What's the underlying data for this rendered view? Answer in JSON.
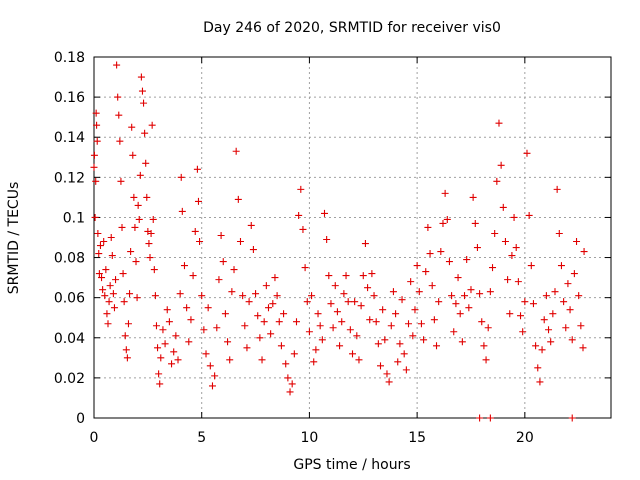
{
  "chart_data": {
    "type": "scatter",
    "title": "Day 246 of 2020, SRMTID for receiver vis0",
    "xlabel": "GPS time / hours",
    "ylabel": "SRMTID / TECUs",
    "xlim": [
      0,
      24
    ],
    "ylim": [
      0,
      0.18
    ],
    "xticks": [
      0,
      5,
      10,
      15,
      20
    ],
    "xtick_labels": [
      "0",
      "5",
      "10",
      "15",
      "20"
    ],
    "yticks": [
      0,
      0.02,
      0.04,
      0.06,
      0.08,
      0.1,
      0.12,
      0.14,
      0.16,
      0.18
    ],
    "ytick_labels": [
      "0",
      "0.02",
      "0.04",
      "0.06",
      "0.08",
      "0.1",
      "0.12",
      "0.14",
      "0.16",
      "0.18"
    ],
    "grid": true,
    "marker": "+",
    "color": "#e00000",
    "series": [
      {
        "name": "vis0",
        "points": [
          [
            0.0,
            0.125
          ],
          [
            0.02,
            0.131
          ],
          [
            0.05,
            0.1
          ],
          [
            0.08,
            0.118
          ],
          [
            0.1,
            0.152
          ],
          [
            0.12,
            0.146
          ],
          [
            0.15,
            0.138
          ],
          [
            0.18,
            0.092
          ],
          [
            0.22,
            0.082
          ],
          [
            0.25,
            0.072
          ],
          [
            0.3,
            0.086
          ],
          [
            0.35,
            0.07
          ],
          [
            0.4,
            0.064
          ],
          [
            0.45,
            0.088
          ],
          [
            0.5,
            0.061
          ],
          [
            0.55,
            0.074
          ],
          [
            0.6,
            0.052
          ],
          [
            0.65,
            0.047
          ],
          [
            0.7,
            0.058
          ],
          [
            0.75,
            0.066
          ],
          [
            0.8,
            0.09
          ],
          [
            0.85,
            0.081
          ],
          [
            0.9,
            0.062
          ],
          [
            0.95,
            0.055
          ],
          [
            1.0,
            0.069
          ],
          [
            1.05,
            0.176
          ],
          [
            1.1,
            0.16
          ],
          [
            1.15,
            0.151
          ],
          [
            1.2,
            0.138
          ],
          [
            1.25,
            0.118
          ],
          [
            1.3,
            0.095
          ],
          [
            1.35,
            0.072
          ],
          [
            1.4,
            0.058
          ],
          [
            1.45,
            0.041
          ],
          [
            1.5,
            0.034
          ],
          [
            1.55,
            0.03
          ],
          [
            1.6,
            0.047
          ],
          [
            1.65,
            0.062
          ],
          [
            1.7,
            0.083
          ],
          [
            1.75,
            0.145
          ],
          [
            1.8,
            0.131
          ],
          [
            1.85,
            0.11
          ],
          [
            1.9,
            0.095
          ],
          [
            1.95,
            0.078
          ],
          [
            2.0,
            0.06
          ],
          [
            2.05,
            0.106
          ],
          [
            2.1,
            0.099
          ],
          [
            2.15,
            0.121
          ],
          [
            2.2,
            0.17
          ],
          [
            2.25,
            0.163
          ],
          [
            2.3,
            0.157
          ],
          [
            2.35,
            0.142
          ],
          [
            2.4,
            0.127
          ],
          [
            2.45,
            0.11
          ],
          [
            2.5,
            0.093
          ],
          [
            2.55,
            0.087
          ],
          [
            2.6,
            0.08
          ],
          [
            2.65,
            0.092
          ],
          [
            2.7,
            0.146
          ],
          [
            2.75,
            0.099
          ],
          [
            2.8,
            0.074
          ],
          [
            2.85,
            0.061
          ],
          [
            2.9,
            0.046
          ],
          [
            2.95,
            0.035
          ],
          [
            3.0,
            0.022
          ],
          [
            3.05,
            0.017
          ],
          [
            3.1,
            0.03
          ],
          [
            3.2,
            0.044
          ],
          [
            3.3,
            0.037
          ],
          [
            3.4,
            0.054
          ],
          [
            3.5,
            0.048
          ],
          [
            3.6,
            0.027
          ],
          [
            3.7,
            0.033
          ],
          [
            3.8,
            0.041
          ],
          [
            3.9,
            0.029
          ],
          [
            4.0,
            0.062
          ],
          [
            4.05,
            0.12
          ],
          [
            4.1,
            0.103
          ],
          [
            4.2,
            0.076
          ],
          [
            4.3,
            0.055
          ],
          [
            4.4,
            0.038
          ],
          [
            4.5,
            0.049
          ],
          [
            4.6,
            0.071
          ],
          [
            4.7,
            0.093
          ],
          [
            4.8,
            0.124
          ],
          [
            4.85,
            0.108
          ],
          [
            4.9,
            0.088
          ],
          [
            5.0,
            0.061
          ],
          [
            5.1,
            0.044
          ],
          [
            5.2,
            0.032
          ],
          [
            5.3,
            0.055
          ],
          [
            5.4,
            0.026
          ],
          [
            5.5,
            0.016
          ],
          [
            5.6,
            0.021
          ],
          [
            5.7,
            0.045
          ],
          [
            5.8,
            0.069
          ],
          [
            5.9,
            0.091
          ],
          [
            6.0,
            0.078
          ],
          [
            6.1,
            0.052
          ],
          [
            6.2,
            0.038
          ],
          [
            6.3,
            0.029
          ],
          [
            6.4,
            0.063
          ],
          [
            6.5,
            0.074
          ],
          [
            6.6,
            0.133
          ],
          [
            6.7,
            0.109
          ],
          [
            6.8,
            0.088
          ],
          [
            6.9,
            0.061
          ],
          [
            7.0,
            0.046
          ],
          [
            7.1,
            0.035
          ],
          [
            7.2,
            0.058
          ],
          [
            7.3,
            0.096
          ],
          [
            7.4,
            0.084
          ],
          [
            7.5,
            0.062
          ],
          [
            7.6,
            0.051
          ],
          [
            7.7,
            0.04
          ],
          [
            7.8,
            0.029
          ],
          [
            7.9,
            0.048
          ],
          [
            8.0,
            0.066
          ],
          [
            8.1,
            0.055
          ],
          [
            8.2,
            0.042
          ],
          [
            8.3,
            0.057
          ],
          [
            8.4,
            0.07
          ],
          [
            8.5,
            0.061
          ],
          [
            8.6,
            0.048
          ],
          [
            8.7,
            0.036
          ],
          [
            8.8,
            0.052
          ],
          [
            8.9,
            0.027
          ],
          [
            9.0,
            0.02
          ],
          [
            9.1,
            0.013
          ],
          [
            9.2,
            0.017
          ],
          [
            9.3,
            0.032
          ],
          [
            9.4,
            0.048
          ],
          [
            9.5,
            0.101
          ],
          [
            9.6,
            0.114
          ],
          [
            9.7,
            0.094
          ],
          [
            9.8,
            0.075
          ],
          [
            9.9,
            0.058
          ],
          [
            10.0,
            0.043
          ],
          [
            10.1,
            0.061
          ],
          [
            10.2,
            0.028
          ],
          [
            10.3,
            0.034
          ],
          [
            10.4,
            0.052
          ],
          [
            10.5,
            0.046
          ],
          [
            10.6,
            0.039
          ],
          [
            10.7,
            0.102
          ],
          [
            10.8,
            0.089
          ],
          [
            10.9,
            0.071
          ],
          [
            11.0,
            0.057
          ],
          [
            11.1,
            0.045
          ],
          [
            11.2,
            0.066
          ],
          [
            11.3,
            0.053
          ],
          [
            11.4,
            0.036
          ],
          [
            11.5,
            0.048
          ],
          [
            11.6,
            0.062
          ],
          [
            11.7,
            0.071
          ],
          [
            11.8,
            0.058
          ],
          [
            11.9,
            0.044
          ],
          [
            12.0,
            0.032
          ],
          [
            12.1,
            0.058
          ],
          [
            12.2,
            0.041
          ],
          [
            12.3,
            0.029
          ],
          [
            12.4,
            0.056
          ],
          [
            12.5,
            0.071
          ],
          [
            12.6,
            0.087
          ],
          [
            12.7,
            0.065
          ],
          [
            12.8,
            0.049
          ],
          [
            12.9,
            0.072
          ],
          [
            13.0,
            0.061
          ],
          [
            13.1,
            0.048
          ],
          [
            13.2,
            0.037
          ],
          [
            13.3,
            0.026
          ],
          [
            13.4,
            0.054
          ],
          [
            13.5,
            0.039
          ],
          [
            13.6,
            0.022
          ],
          [
            13.7,
            0.018
          ],
          [
            13.8,
            0.046
          ],
          [
            13.9,
            0.063
          ],
          [
            14.0,
            0.052
          ],
          [
            14.1,
            0.028
          ],
          [
            14.2,
            0.037
          ],
          [
            14.3,
            0.059
          ],
          [
            14.4,
            0.032
          ],
          [
            14.5,
            0.024
          ],
          [
            14.6,
            0.047
          ],
          [
            14.7,
            0.068
          ],
          [
            14.8,
            0.041
          ],
          [
            14.9,
            0.054
          ],
          [
            15.0,
            0.076
          ],
          [
            15.1,
            0.063
          ],
          [
            15.2,
            0.047
          ],
          [
            15.3,
            0.039
          ],
          [
            15.4,
            0.073
          ],
          [
            15.5,
            0.095
          ],
          [
            15.6,
            0.082
          ],
          [
            15.7,
            0.066
          ],
          [
            15.8,
            0.049
          ],
          [
            15.9,
            0.036
          ],
          [
            16.0,
            0.058
          ],
          [
            16.1,
            0.083
          ],
          [
            16.2,
            0.097
          ],
          [
            16.3,
            0.112
          ],
          [
            16.4,
            0.099
          ],
          [
            16.5,
            0.078
          ],
          [
            16.6,
            0.061
          ],
          [
            16.7,
            0.043
          ],
          [
            16.8,
            0.057
          ],
          [
            16.9,
            0.07
          ],
          [
            17.0,
            0.052
          ],
          [
            17.1,
            0.038
          ],
          [
            17.2,
            0.061
          ],
          [
            17.3,
            0.079
          ],
          [
            17.4,
            0.055
          ],
          [
            17.5,
            0.064
          ],
          [
            17.6,
            0.11
          ],
          [
            17.7,
            0.097
          ],
          [
            17.8,
            0.085
          ],
          [
            17.9,
            0.062
          ],
          [
            18.0,
            0.048
          ],
          [
            18.1,
            0.036
          ],
          [
            18.2,
            0.029
          ],
          [
            18.3,
            0.045
          ],
          [
            18.4,
            0.063
          ],
          [
            18.5,
            0.075
          ],
          [
            18.6,
            0.092
          ],
          [
            18.7,
            0.118
          ],
          [
            18.8,
            0.147
          ],
          [
            18.9,
            0.126
          ],
          [
            19.0,
            0.105
          ],
          [
            19.1,
            0.088
          ],
          [
            19.2,
            0.069
          ],
          [
            19.3,
            0.052
          ],
          [
            19.4,
            0.081
          ],
          [
            19.5,
            0.1
          ],
          [
            19.6,
            0.085
          ],
          [
            19.7,
            0.068
          ],
          [
            19.8,
            0.051
          ],
          [
            19.9,
            0.043
          ],
          [
            20.0,
            0.058
          ],
          [
            20.1,
            0.132
          ],
          [
            20.2,
            0.101
          ],
          [
            20.3,
            0.076
          ],
          [
            20.4,
            0.057
          ],
          [
            20.5,
            0.036
          ],
          [
            20.6,
            0.025
          ],
          [
            20.7,
            0.018
          ],
          [
            20.8,
            0.034
          ],
          [
            20.9,
            0.049
          ],
          [
            21.0,
            0.061
          ],
          [
            21.1,
            0.044
          ],
          [
            21.2,
            0.038
          ],
          [
            21.3,
            0.052
          ],
          [
            21.4,
            0.063
          ],
          [
            21.5,
            0.114
          ],
          [
            21.6,
            0.092
          ],
          [
            21.7,
            0.076
          ],
          [
            21.8,
            0.058
          ],
          [
            21.9,
            0.045
          ],
          [
            22.0,
            0.067
          ],
          [
            22.1,
            0.054
          ],
          [
            22.2,
            0.039
          ],
          [
            22.3,
            0.072
          ],
          [
            22.4,
            0.088
          ],
          [
            22.5,
            0.061
          ],
          [
            22.6,
            0.046
          ],
          [
            22.7,
            0.035
          ],
          [
            22.75,
            0.083
          ],
          [
            17.9,
            0.0
          ],
          [
            18.4,
            0.0
          ],
          [
            22.2,
            0.0
          ]
        ]
      }
    ]
  }
}
